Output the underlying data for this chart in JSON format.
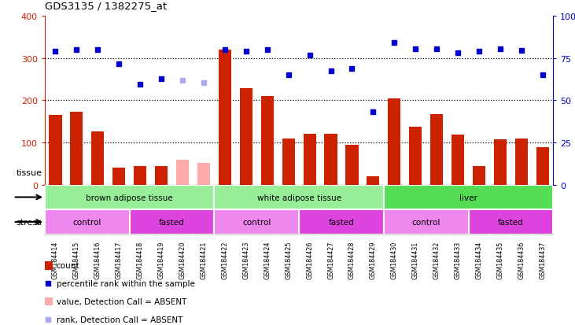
{
  "title": "GDS3135 / 1382275_at",
  "samples": [
    "GSM184414",
    "GSM184415",
    "GSM184416",
    "GSM184417",
    "GSM184418",
    "GSM184419",
    "GSM184420",
    "GSM184421",
    "GSM184422",
    "GSM184423",
    "GSM184424",
    "GSM184425",
    "GSM184426",
    "GSM184427",
    "GSM184428",
    "GSM184429",
    "GSM184430",
    "GSM184431",
    "GSM184432",
    "GSM184433",
    "GSM184434",
    "GSM184435",
    "GSM184436",
    "GSM184437"
  ],
  "count_values": [
    165,
    172,
    126,
    40,
    45,
    45,
    60,
    52,
    320,
    228,
    210,
    109,
    120,
    120,
    95,
    20,
    205,
    137,
    168,
    118,
    45,
    108,
    109,
    90
  ],
  "count_absent": [
    false,
    false,
    false,
    false,
    false,
    false,
    true,
    true,
    false,
    false,
    false,
    false,
    false,
    false,
    false,
    false,
    false,
    false,
    false,
    false,
    false,
    false,
    false,
    false
  ],
  "percentile_values": [
    316,
    320,
    320,
    287,
    237,
    250,
    248,
    242,
    320,
    315,
    320,
    260,
    307,
    270,
    275,
    172,
    337,
    322,
    322,
    312,
    315,
    322,
    317,
    260
  ],
  "percentile_absent": [
    false,
    false,
    false,
    false,
    false,
    false,
    true,
    true,
    false,
    false,
    false,
    false,
    false,
    false,
    false,
    false,
    false,
    false,
    false,
    false,
    false,
    false,
    false,
    false
  ],
  "ylim_left": [
    0,
    400
  ],
  "ylim_right": [
    0,
    100
  ],
  "yticks_left": [
    0,
    100,
    200,
    300,
    400
  ],
  "yticks_right": [
    0,
    25,
    50,
    75,
    100
  ],
  "ytick_labels_right": [
    "0",
    "25",
    "50",
    "75",
    "100%"
  ],
  "bar_color": "#cc2200",
  "bar_absent_color": "#ffaaaa",
  "dot_color": "#0000cc",
  "dot_absent_color": "#aaaaee",
  "tick_bg_color": "#c8c8c8",
  "tissue_groups": [
    {
      "label": "brown adipose tissue",
      "start": 0,
      "end": 8,
      "color": "#99ee99"
    },
    {
      "label": "white adipose tissue",
      "start": 8,
      "end": 16,
      "color": "#99ee99"
    },
    {
      "label": "liver",
      "start": 16,
      "end": 24,
      "color": "#55dd55"
    }
  ],
  "stress_groups": [
    {
      "label": "control",
      "start": 0,
      "end": 4,
      "color": "#ee88ee"
    },
    {
      "label": "fasted",
      "start": 4,
      "end": 8,
      "color": "#dd44dd"
    },
    {
      "label": "control",
      "start": 8,
      "end": 12,
      "color": "#ee88ee"
    },
    {
      "label": "fasted",
      "start": 12,
      "end": 16,
      "color": "#dd44dd"
    },
    {
      "label": "control",
      "start": 16,
      "end": 20,
      "color": "#ee88ee"
    },
    {
      "label": "fasted",
      "start": 20,
      "end": 24,
      "color": "#dd44dd"
    }
  ],
  "tissue_label": "tissue",
  "stress_label": "stress",
  "legend_items": [
    {
      "label": "count",
      "type": "bar",
      "color": "#cc2200"
    },
    {
      "label": "percentile rank within the sample",
      "type": "square",
      "color": "#0000cc"
    },
    {
      "label": "value, Detection Call = ABSENT",
      "type": "bar",
      "color": "#ffaaaa"
    },
    {
      "label": "rank, Detection Call = ABSENT",
      "type": "square",
      "color": "#aaaaee"
    }
  ]
}
